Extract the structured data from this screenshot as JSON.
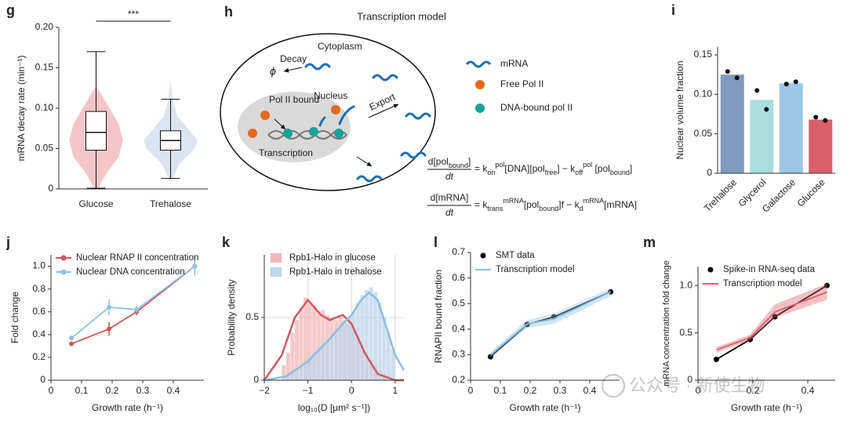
{
  "chart_data": [
    {
      "type": "violin",
      "label": "g",
      "annotation": "***",
      "ylabel": "mRNA decay rate (min⁻¹)",
      "categories": [
        "Glucose",
        "Trehalose"
      ],
      "ylim": [
        0,
        0.2
      ],
      "yticks": [
        0,
        0.05,
        {
          "value": 0.1,
          "label": "0.10"
        },
        0.15,
        {
          "value": 0.2,
          "label": "0.20"
        }
      ],
      "violins": [
        {
          "color": "#f4c6c8",
          "density_y": [
            0.0,
            0.02,
            0.04,
            0.06,
            0.08,
            0.1,
            0.12,
            0.125
          ],
          "density_width": [
            0.05,
            0.4,
            0.85,
            1.0,
            0.85,
            0.5,
            0.15,
            0.02
          ],
          "whisker_low": 0.001,
          "q1": 0.048,
          "median": 0.07,
          "q3": 0.096,
          "whisker_high": 0.17
        },
        {
          "color": "#dbe4ef",
          "density_y": [
            0.01,
            0.03,
            0.05,
            0.06,
            0.07,
            0.09,
            0.11,
            0.13
          ],
          "density_width": [
            0.05,
            0.3,
            0.9,
            1.0,
            0.75,
            0.25,
            0.08,
            0.02
          ],
          "whisker_low": 0.013,
          "q1": 0.048,
          "median": 0.06,
          "q3": 0.072,
          "whisker_high": 0.111
        }
      ]
    },
    {
      "type": "bar",
      "label": "i",
      "ylabel": "Nuclear volume fraction",
      "categories": [
        "Trehalose",
        "Glycerol",
        "Galactose",
        "Glucose"
      ],
      "values": [
        0.125,
        0.093,
        0.114,
        0.068
      ],
      "colors": [
        "#7f9bbf",
        "#a8dedb",
        "#9cc7e6",
        "#d9606a"
      ],
      "points": [
        [
          0.129,
          0.121
        ],
        [
          0.105,
          0.081
        ],
        [
          0.113,
          0.116
        ],
        [
          0.071,
          0.067
        ]
      ],
      "ylim": [
        0,
        0.16
      ],
      "yticks": [
        0,
        0.05,
        {
          "value": 0.1,
          "label": "0.10"
        },
        0.15
      ]
    },
    {
      "type": "line",
      "label": "j",
      "xlabel": "Growth rate (h⁻¹)",
      "ylabel": "Fold change",
      "legend": "upper left",
      "xlim": [
        0,
        0.5
      ],
      "xticks": [
        0,
        0.1,
        0.2,
        0.3,
        0.4
      ],
      "ylim": [
        0,
        1.1
      ],
      "yticks": [
        0,
        0.2,
        0.4,
        0.6,
        0.8,
        {
          "value": 1,
          "label": "1.0"
        }
      ],
      "series": [
        {
          "name": "Nuclear RNAP II concentration",
          "color": "#d0575c",
          "marker": "circle",
          "x": [
            0.067,
            0.19,
            0.28,
            0.47
          ],
          "values": [
            0.32,
            0.45,
            0.6,
            1.0
          ],
          "errors": [
            0.02,
            0.06,
            0.03,
            0.08
          ]
        },
        {
          "name": "Nuclear DNA concentration",
          "color": "#8ec1e3",
          "marker": "circle",
          "x": [
            0.067,
            0.19,
            0.28,
            0.47
          ],
          "values": [
            0.37,
            0.64,
            0.62,
            1.0
          ],
          "errors": [
            0.02,
            0.07,
            0.03,
            0.08
          ]
        }
      ]
    },
    {
      "type": "histogram",
      "label": "k",
      "xlabel": "log₁₀(D [μm² s⁻¹])",
      "ylabel": "Probability density",
      "legend": "upper left",
      "grid": true,
      "xlim": [
        -2,
        1.2
      ],
      "xticks": [
        {
          "value": -2,
          "label": "−2"
        },
        {
          "value": -1,
          "label": "−1"
        },
        0,
        1
      ],
      "ylim": [
        0,
        1.0
      ],
      "yticks": [
        0,
        0.5
      ],
      "bins": [
        -1.6,
        -1.5,
        -1.4,
        -1.3,
        -1.2,
        -1.1,
        -1.0,
        -0.9,
        -0.8,
        -0.7,
        -0.6,
        -0.5,
        -0.4,
        -0.3,
        -0.2,
        -0.1,
        0.0,
        0.1,
        0.2,
        0.3,
        0.4,
        0.5,
        0.6,
        0.7,
        0.8,
        0.9,
        1.0
      ],
      "series": [
        {
          "name": "Rpb1-Halo in glucose",
          "color": "#f2b7ba",
          "values": [
            0.12,
            0.22,
            0.38,
            0.48,
            0.58,
            0.66,
            0.62,
            0.6,
            0.55,
            0.56,
            0.52,
            0.5,
            0.48,
            0.5,
            0.46,
            0.45,
            0.4,
            0.35,
            0.28,
            0.22,
            0.16,
            0.12,
            0.08,
            0.05,
            0.03,
            0.02
          ]
        },
        {
          "name": "Rpb1-Halo in trehalose",
          "color": "#bcd6ec",
          "values": [
            0.02,
            0.04,
            0.05,
            0.08,
            0.12,
            0.15,
            0.18,
            0.22,
            0.26,
            0.3,
            0.32,
            0.36,
            0.4,
            0.44,
            0.48,
            0.5,
            0.55,
            0.62,
            0.68,
            0.72,
            0.74,
            0.7,
            0.62,
            0.5,
            0.38,
            0.25
          ]
        }
      ],
      "curves": [
        {
          "color": "#d05a5f",
          "x": [
            -2,
            -1.6,
            -1.3,
            -1.0,
            -0.7,
            -0.5,
            -0.2,
            0,
            0.3,
            0.6,
            1.0,
            1.2
          ],
          "values": [
            0,
            0.2,
            0.5,
            0.64,
            0.52,
            0.48,
            0.52,
            0.45,
            0.22,
            0.05,
            0,
            0
          ]
        },
        {
          "color": "#8fbde0",
          "x": [
            -2,
            -1.5,
            -1.0,
            -0.5,
            -0.2,
            0,
            0.2,
            0.4,
            0.6,
            0.8,
            1.0,
            1.2
          ],
          "values": [
            0,
            0.03,
            0.15,
            0.33,
            0.45,
            0.52,
            0.63,
            0.7,
            0.64,
            0.42,
            0.2,
            0.08
          ]
        }
      ]
    },
    {
      "type": "line",
      "label": "l",
      "xlabel": "Growth rate (h⁻¹)",
      "ylabel": "RNAPII bound fraction",
      "legend": "upper left",
      "xlim": [
        0,
        0.5
      ],
      "xticks": [
        0,
        0.1,
        0.2,
        0.3,
        0.4
      ],
      "ylim": [
        0.2,
        0.7
      ],
      "yticks": [
        0.2,
        0.3,
        0.4,
        0.5,
        0.6,
        0.7
      ],
      "series": [
        {
          "name": "SMT data",
          "color": "#000000",
          "marker": "circle",
          "x": [
            0.067,
            0.19,
            0.28,
            0.47
          ],
          "values": [
            0.292,
            0.418,
            0.448,
            0.546
          ]
        },
        {
          "name": "Transcription model",
          "color": "#8ec1e3",
          "x": [
            0.067,
            0.19,
            0.28,
            0.47
          ],
          "values": [
            0.3,
            0.42,
            0.44,
            0.545
          ],
          "lower": [
            0.29,
            0.405,
            0.42,
            0.53
          ],
          "upper": [
            0.31,
            0.435,
            0.46,
            0.56
          ]
        }
      ]
    },
    {
      "type": "line",
      "label": "m",
      "xlabel": "Growth rate (h⁻¹)",
      "ylabel": "mRNA concentration fold change",
      "legend": "upper left",
      "xlim": [
        0,
        0.5
      ],
      "xticks": [
        0,
        0.2,
        0.4
      ],
      "ylim": [
        0,
        1.2
      ],
      "yticks": [
        0,
        0.5,
        {
          "value": 1,
          "label": "1.0"
        }
      ],
      "series": [
        {
          "name": "Spike-in RNA-seq data",
          "color": "#000000",
          "marker": "circle",
          "x": [
            0.067,
            0.19,
            0.28,
            0.47
          ],
          "values": [
            0.22,
            0.43,
            0.67,
            1.0
          ]
        },
        {
          "name": "Transcription model",
          "color": "#d9606a",
          "x": [
            0.067,
            0.19,
            0.28,
            0.47
          ],
          "values": [
            0.32,
            0.45,
            0.72,
            0.93
          ],
          "lower": [
            0.29,
            0.42,
            0.66,
            0.85
          ],
          "upper": [
            0.35,
            0.48,
            0.8,
            1.02
          ]
        }
      ]
    }
  ],
  "diagram": {
    "label": "h",
    "title": "Transcription model",
    "nodes": {
      "cytoplasm": "Cytoplasm",
      "decay": "Decay",
      "phi": "ϕ",
      "pol_bound": "Pol II bound",
      "nucleus": "Nucleus",
      "export": "Export",
      "transcription": "Transcription"
    },
    "legend": {
      "mrna": "mRNA",
      "free": "Free Pol II",
      "dna_bound": "DNA-bound pol II"
    },
    "equations": [
      {
        "numerator": [
          {
            "text": "d[pol"
          },
          {
            "text": "bound",
            "pos": "sub"
          },
          {
            "text": "]"
          }
        ],
        "denominator": [
          {
            "text": "dt"
          }
        ],
        "rhs": [
          {
            "text": "= k"
          },
          {
            "text": "on",
            "pos": "sub"
          },
          {
            "text": "pol",
            "pos": "sup"
          },
          {
            "text": "[DNA][pol"
          },
          {
            "text": "free",
            "pos": "sub"
          },
          {
            "text": "] − k"
          },
          {
            "text": "off",
            "pos": "sub"
          },
          {
            "text": "pol",
            "pos": "sup"
          },
          {
            "text": " [pol"
          },
          {
            "text": "bound",
            "pos": "sub"
          },
          {
            "text": "]"
          }
        ]
      },
      {
        "numerator": [
          {
            "text": "d[mRNA]"
          }
        ],
        "denominator": [
          {
            "text": "dt"
          }
        ],
        "rhs": [
          {
            "text": "= k"
          },
          {
            "text": "trans",
            "pos": "sub"
          },
          {
            "text": "mRNA",
            "pos": "sup"
          },
          {
            "text": "[pol"
          },
          {
            "text": "bound",
            "pos": "sub"
          },
          {
            "text": "]f − k"
          },
          {
            "text": "d",
            "pos": "sub"
          },
          {
            "text": "mRNA",
            "pos": "sup"
          },
          {
            "text": "[mRNA]"
          }
        ]
      }
    ]
  },
  "watermark": "公众号 · 新使生物"
}
